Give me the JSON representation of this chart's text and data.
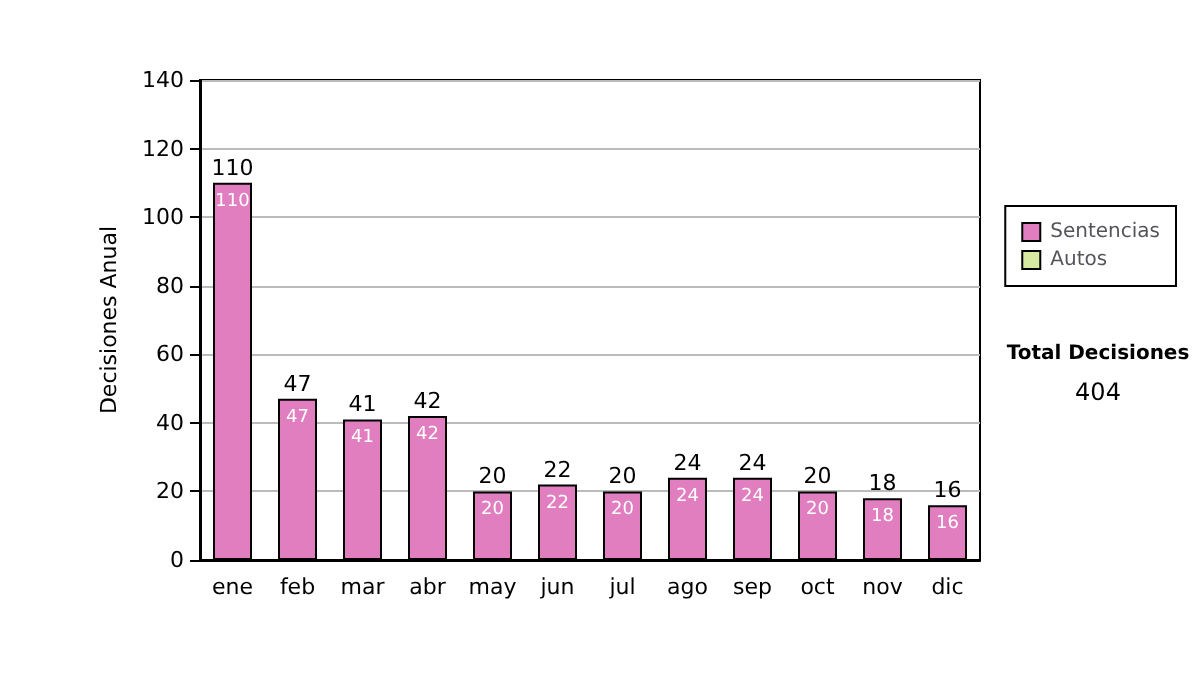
{
  "chart_data": {
    "type": "bar",
    "stacked": true,
    "ylabel": "Decisiones Anual",
    "categories": [
      "ene",
      "feb",
      "mar",
      "abr",
      "may",
      "jun",
      "jul",
      "ago",
      "sep",
      "oct",
      "nov",
      "dic"
    ],
    "series": [
      {
        "name": "Sentencias",
        "color": "#e07ec0",
        "values": [
          110,
          47,
          41,
          42,
          20,
          22,
          20,
          24,
          24,
          20,
          18,
          16
        ],
        "value_labels": [
          "110",
          "47",
          "41",
          "42",
          "20",
          "22",
          "20",
          "24",
          "24",
          "20",
          "18",
          "16"
        ]
      },
      {
        "name": "Autos",
        "color": "#d8eaa0",
        "values": [
          null,
          null,
          null,
          null,
          null,
          null,
          null,
          null,
          null,
          null,
          null,
          null
        ]
      }
    ],
    "totals": [
      "110",
      "47",
      "41",
      "42",
      "20",
      "22",
      "20",
      "24",
      "24",
      "20",
      "18",
      "16"
    ],
    "ylim": [
      0,
      140
    ],
    "yticks": [
      0,
      20,
      40,
      60,
      80,
      100,
      120,
      140
    ],
    "grid": "y",
    "legend": "right",
    "annotations": [
      "Total Decisiones",
      "404"
    ]
  }
}
